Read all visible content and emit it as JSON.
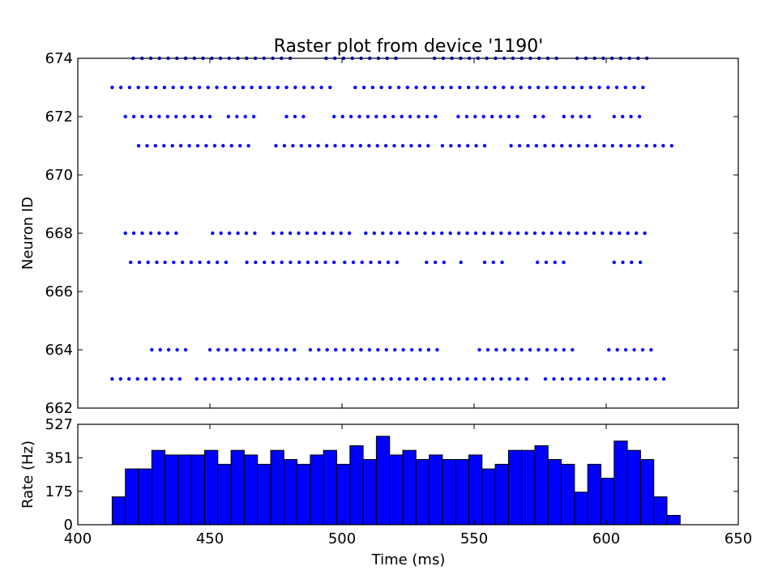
{
  "chart_data": [
    {
      "type": "scatter",
      "title": "Raster plot from device '1190'",
      "xlabel": "",
      "ylabel": "Neuron ID",
      "xlim": [
        400,
        650
      ],
      "ylim": [
        662,
        674
      ],
      "yticks": [
        662,
        664,
        666,
        668,
        670,
        672,
        674
      ],
      "grid": false,
      "marker_color": "#0000ff",
      "rows": [
        {
          "neuron": 674,
          "segments": [
            [
              421,
              483
            ],
            [
              494,
              523
            ],
            [
              535,
              583
            ],
            [
              589,
              618
            ]
          ],
          "spacing": 3.3
        },
        {
          "neuron": 673,
          "segments": [
            [
              413,
              498
            ],
            [
              505,
              617
            ]
          ],
          "spacing": 3.3
        },
        {
          "neuron": 672,
          "segments": [
            [
              418,
              452
            ],
            [
              457,
              469
            ],
            [
              479,
              486
            ],
            [
              497,
              538
            ],
            [
              544,
              567
            ],
            [
              573,
              577
            ],
            [
              584,
              596
            ],
            [
              603,
              615
            ]
          ],
          "spacing": 3.2
        },
        {
          "neuron": 671,
          "segments": [
            [
              423,
              467
            ],
            [
              475,
              533
            ],
            [
              538,
              556
            ],
            [
              564,
              626
            ]
          ],
          "spacing": 3.2
        },
        {
          "neuron": 668,
          "segments": [
            [
              418,
              439
            ],
            [
              451,
              469
            ],
            [
              474,
              504
            ],
            [
              509,
              615
            ]
          ],
          "spacing": 3.2
        },
        {
          "neuron": 667,
          "segments": [
            [
              420,
              430
            ],
            [
              433,
              459
            ],
            [
              464,
              498
            ],
            [
              501,
              523
            ],
            [
              532,
              539
            ],
            [
              545,
              547
            ],
            [
              554,
              561
            ],
            [
              574,
              585
            ],
            [
              603,
              616
            ]
          ],
          "spacing": 3.3
        },
        {
          "neuron": 664,
          "segments": [
            [
              428,
              441
            ],
            [
              450,
              483
            ],
            [
              488,
              538
            ],
            [
              552,
              590
            ],
            [
              601,
              618
            ]
          ],
          "spacing": 3.2
        },
        {
          "neuron": 663,
          "segments": [
            [
              413,
              441
            ],
            [
              445,
              572
            ],
            [
              577,
              623
            ]
          ],
          "spacing": 3.2
        }
      ]
    },
    {
      "type": "bar",
      "title": "",
      "xlabel": "Time (ms)",
      "ylabel": "Rate (Hz)",
      "xlim": [
        400,
        650
      ],
      "ylim": [
        0,
        527
      ],
      "xticks": [
        400,
        450,
        500,
        550,
        600,
        650
      ],
      "yticks": [
        0,
        175,
        351,
        527
      ],
      "bin_start": 413,
      "bin_width": 5,
      "values": [
        146,
        293,
        293,
        390,
        366,
        366,
        366,
        390,
        317,
        390,
        366,
        317,
        390,
        342,
        317,
        366,
        390,
        317,
        415,
        342,
        464,
        366,
        390,
        342,
        366,
        342,
        342,
        366,
        293,
        317,
        390,
        390,
        415,
        342,
        317,
        171,
        317,
        244,
        439,
        390,
        342,
        146,
        49
      ],
      "bar_color": "#0000ff",
      "grid": false
    }
  ]
}
